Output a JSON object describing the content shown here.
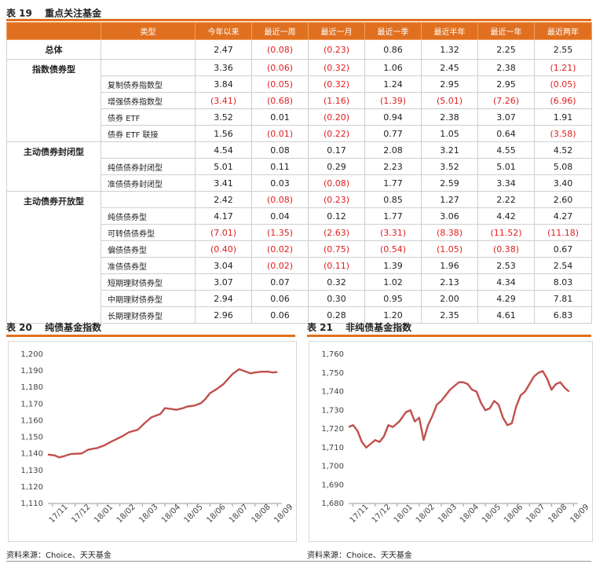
{
  "table19": {
    "label": "表 19",
    "title": "重点关注基金",
    "headers": [
      "类型",
      "今年以来",
      "最近一周",
      "最近一月",
      "最近一季",
      "最近半年",
      "最近一年",
      "最近两年"
    ],
    "rows": [
      {
        "cat": "总体",
        "sub": "",
        "vals": [
          "2.47",
          "(0.08)",
          "(0.23)",
          "0.86",
          "1.32",
          "2.25",
          "2.55"
        ]
      },
      {
        "cat": "指数债券型",
        "sub": "",
        "vals": [
          "3.36",
          "(0.06)",
          "(0.32)",
          "1.06",
          "2.45",
          "2.38",
          "(1.21)"
        ]
      },
      {
        "cat": "",
        "sub": "复制债券指数型",
        "vals": [
          "3.84",
          "(0.05)",
          "(0.32)",
          "1.24",
          "2.95",
          "2.95",
          "(0.05)"
        ]
      },
      {
        "cat": "",
        "sub": "增强债券指数型",
        "vals": [
          "(3.41)",
          "(0.68)",
          "(1.16)",
          "(1.39)",
          "(5.01)",
          "(7.26)",
          "(6.96)"
        ]
      },
      {
        "cat": "",
        "sub": "债券 ETF",
        "vals": [
          "3.52",
          "0.01",
          "(0.20)",
          "0.94",
          "2.38",
          "3.07",
          "1.91"
        ]
      },
      {
        "cat": "",
        "sub": "债券 ETF 联接",
        "vals": [
          "1.56",
          "(0.01)",
          "(0.22)",
          "0.77",
          "1.05",
          "0.64",
          "(3.58)"
        ]
      },
      {
        "cat": "主动债券封闭型",
        "sub": "",
        "vals": [
          "4.54",
          "0.08",
          "0.17",
          "2.08",
          "3.21",
          "4.55",
          "4.52"
        ]
      },
      {
        "cat": "",
        "sub": "纯债债券封闭型",
        "vals": [
          "5.01",
          "0.11",
          "0.29",
          "2.23",
          "3.52",
          "5.01",
          "5.08"
        ]
      },
      {
        "cat": "",
        "sub": "准债债券封闭型",
        "vals": [
          "3.41",
          "0.03",
          "(0.08)",
          "1.77",
          "2.59",
          "3.34",
          "3.40"
        ]
      },
      {
        "cat": "主动债券开放型",
        "sub": "",
        "vals": [
          "2.42",
          "(0.08)",
          "(0.23)",
          "0.85",
          "1.27",
          "2.22",
          "2.60"
        ]
      },
      {
        "cat": "",
        "sub": "纯债债券型",
        "vals": [
          "4.17",
          "0.04",
          "0.12",
          "1.77",
          "3.06",
          "4.42",
          "4.27"
        ]
      },
      {
        "cat": "",
        "sub": "可转债债券型",
        "vals": [
          "(7.01)",
          "(1.35)",
          "(2.63)",
          "(3.31)",
          "(8.38)",
          "(11.52)",
          "(11.18)"
        ]
      },
      {
        "cat": "",
        "sub": "偏债债券型",
        "vals": [
          "(0.40)",
          "(0.02)",
          "(0.75)",
          "(0.54)",
          "(1.05)",
          "(0.38)",
          "0.67"
        ]
      },
      {
        "cat": "",
        "sub": "准债债券型",
        "vals": [
          "3.04",
          "(0.02)",
          "(0.11)",
          "1.39",
          "1.96",
          "2.53",
          "2.54"
        ]
      },
      {
        "cat": "",
        "sub": "短期理财债券型",
        "vals": [
          "3.07",
          "0.07",
          "0.32",
          "1.02",
          "2.13",
          "4.34",
          "8.03"
        ]
      },
      {
        "cat": "",
        "sub": "中期理财债券型",
        "vals": [
          "2.94",
          "0.06",
          "0.30",
          "0.95",
          "2.00",
          "4.29",
          "7.81"
        ]
      },
      {
        "cat": "",
        "sub": "长期理财债券型",
        "vals": [
          "2.96",
          "0.06",
          "0.28",
          "1.20",
          "2.35",
          "4.61",
          "6.83"
        ]
      }
    ],
    "category_spans": [
      {
        "row": 0,
        "span": 1
      },
      {
        "row": 1,
        "span": 5
      },
      {
        "row": 6,
        "span": 3
      },
      {
        "row": 9,
        "span": 8
      }
    ]
  },
  "chart20": {
    "label": "表 20",
    "title": "纯债基金指数",
    "source": "资料来源：Choice、天天基金"
  },
  "chart21": {
    "label": "表 21",
    "title": "非纯债基金指数",
    "source": "资料来源：Choice、天天基金"
  },
  "colors": {
    "accent": "#e07020",
    "negative": "#e02020",
    "line": "#c0504d"
  },
  "chart_data": [
    {
      "type": "line",
      "title": "纯债基金指数",
      "xlabel": "",
      "ylabel": "",
      "ylim": [
        1110,
        1200
      ],
      "yticks": [
        "1,110",
        "1,120",
        "1,130",
        "1,140",
        "1,150",
        "1,160",
        "1,170",
        "1,180",
        "1,190",
        "1,200"
      ],
      "xticks": [
        "17/11",
        "17/12",
        "18/01",
        "18/02",
        "18/03",
        "18/04",
        "18/05",
        "18/06",
        "18/07",
        "18/08",
        "18/09"
      ],
      "x": [
        0,
        0.3,
        0.5,
        0.7,
        1.0,
        1.2,
        1.5,
        1.8,
        2.0,
        2.2,
        2.5,
        2.8,
        3.0,
        3.3,
        3.6,
        4.0,
        4.3,
        4.6,
        5.0,
        5.2,
        5.5,
        5.7,
        5.8,
        6.0,
        6.2,
        6.5,
        6.8,
        7.0,
        7.2,
        7.5,
        7.8,
        8.0,
        8.2,
        8.5,
        8.8,
        9.0,
        9.2,
        9.5,
        9.8,
        10.0,
        10.2
      ],
      "series": [
        {
          "values": [
            1139.5,
            1139.0,
            1137.8,
            1138.5,
            1139.8,
            1140.0,
            1140.2,
            1142.5,
            1143.0,
            1143.5,
            1145.0,
            1147.2,
            1148.5,
            1150.5,
            1153.0,
            1154.5,
            1158.5,
            1162.0,
            1164.0,
            1167.5,
            1167.0,
            1166.5,
            1166.8,
            1167.5,
            1168.5,
            1169.0,
            1170.5,
            1173.0,
            1176.5,
            1179.0,
            1182.0,
            1185.0,
            1188.0,
            1191.0,
            1189.5,
            1188.5,
            1189.0,
            1189.5,
            1189.5,
            1189.0,
            1189.3
          ]
        }
      ]
    },
    {
      "type": "line",
      "title": "非纯债基金指数",
      "xlabel": "",
      "ylabel": "",
      "ylim": [
        1680,
        1760
      ],
      "yticks": [
        "1,680",
        "1,690",
        "1,700",
        "1,710",
        "1,720",
        "1,730",
        "1,740",
        "1,750",
        "1,760"
      ],
      "xticks": [
        "17/11",
        "17/12",
        "18/01",
        "18/02",
        "18/03",
        "18/04",
        "18/05",
        "18/06",
        "18/07",
        "18/08",
        "18/09"
      ],
      "x": [
        0,
        0.2,
        0.4,
        0.6,
        0.8,
        1.0,
        1.2,
        1.4,
        1.6,
        1.8,
        2.0,
        2.3,
        2.6,
        2.8,
        3.0,
        3.2,
        3.4,
        3.6,
        3.8,
        4.0,
        4.2,
        4.4,
        4.6,
        4.8,
        5.0,
        5.2,
        5.4,
        5.6,
        5.8,
        6.0,
        6.2,
        6.4,
        6.6,
        6.8,
        7.0,
        7.2,
        7.4,
        7.6,
        7.8,
        8.0,
        8.2,
        8.4,
        8.6,
        8.8,
        9.0,
        9.2,
        9.4,
        9.6,
        9.8,
        10.0
      ],
      "series": [
        {
          "values": [
            1721,
            1722,
            1719,
            1713,
            1710,
            1712,
            1714,
            1713,
            1716,
            1722,
            1721,
            1724,
            1729,
            1730,
            1724,
            1726,
            1714,
            1722,
            1727,
            1733,
            1735,
            1738,
            1741,
            1743,
            1745,
            1745,
            1744,
            1741,
            1740,
            1734,
            1730,
            1731,
            1735,
            1733,
            1726,
            1722,
            1723,
            1732,
            1738,
            1740,
            1744,
            1748,
            1750,
            1751,
            1747,
            1741,
            1744,
            1745,
            1742,
            1740
          ]
        }
      ]
    }
  ]
}
